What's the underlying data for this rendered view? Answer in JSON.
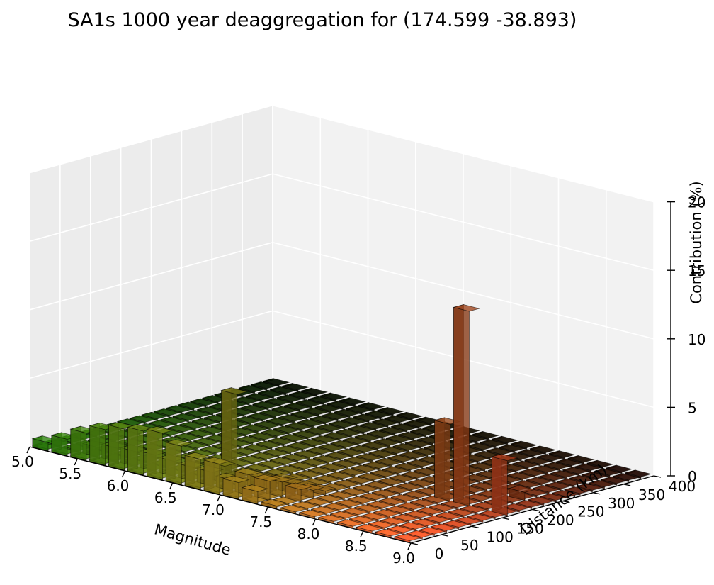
{
  "chart_data": {
    "type": "bar3d",
    "title": "SA1s 1000 year deaggregation for (174.599 -38.893)",
    "xlabel": "Magnitude",
    "ylabel": "Distance (km)",
    "zlabel": "Contribution (%)",
    "x_ticks": [
      "5.0",
      "5.5",
      "6.0",
      "6.5",
      "7.0",
      "7.5",
      "8.0",
      "8.5",
      "9.0"
    ],
    "y_ticks": [
      "0",
      "50",
      "100",
      "150",
      "200",
      "250",
      "300",
      "350",
      "400"
    ],
    "z_ticks": [
      "0",
      "5",
      "10",
      "15",
      "20"
    ],
    "xlim": [
      5.0,
      9.0
    ],
    "ylim": [
      0,
      400
    ],
    "zlim": [
      0,
      20
    ],
    "magnitude_bins": [
      5.0,
      5.2,
      5.4,
      5.6,
      5.8,
      6.0,
      6.2,
      6.4,
      6.6,
      6.8,
      7.0,
      7.2,
      7.4,
      7.6,
      7.8,
      8.0,
      8.2,
      8.4,
      8.6,
      8.8
    ],
    "distance_bins": [
      0,
      20,
      40,
      60,
      80,
      100,
      120,
      140,
      160,
      180,
      200,
      220,
      240,
      260,
      280,
      300,
      320,
      340,
      360,
      380
    ],
    "bars": [
      {
        "magnitude": 5.0,
        "distance": 0,
        "contribution": 0.6
      },
      {
        "magnitude": 5.2,
        "distance": 0,
        "contribution": 1.2
      },
      {
        "magnitude": 5.4,
        "distance": 0,
        "contribution": 2.0
      },
      {
        "magnitude": 5.6,
        "distance": 0,
        "contribution": 2.6
      },
      {
        "magnitude": 5.8,
        "distance": 0,
        "contribution": 3.0
      },
      {
        "magnitude": 6.0,
        "distance": 0,
        "contribution": 3.2
      },
      {
        "magnitude": 6.2,
        "distance": 0,
        "contribution": 3.4
      },
      {
        "magnitude": 6.4,
        "distance": 0,
        "contribution": 2.8
      },
      {
        "magnitude": 6.6,
        "distance": 0,
        "contribution": 2.2
      },
      {
        "magnitude": 6.8,
        "distance": 0,
        "contribution": 2.2
      },
      {
        "magnitude": 7.0,
        "distance": 0,
        "contribution": 1.2
      },
      {
        "magnitude": 7.2,
        "distance": 0,
        "contribution": 0.9
      },
      {
        "magnitude": 7.4,
        "distance": 0,
        "contribution": 0.2
      },
      {
        "magnitude": 5.4,
        "distance": 20,
        "contribution": 0.7
      },
      {
        "magnitude": 5.6,
        "distance": 20,
        "contribution": 1.0
      },
      {
        "magnitude": 5.8,
        "distance": 20,
        "contribution": 1.1
      },
      {
        "magnitude": 6.0,
        "distance": 20,
        "contribution": 1.2
      },
      {
        "magnitude": 6.2,
        "distance": 20,
        "contribution": 1.1
      },
      {
        "magnitude": 6.4,
        "distance": 20,
        "contribution": 1.0
      },
      {
        "magnitude": 6.6,
        "distance": 20,
        "contribution": 1.0
      },
      {
        "magnitude": 6.8,
        "distance": 20,
        "contribution": 0.8
      },
      {
        "magnitude": 7.0,
        "distance": 20,
        "contribution": 1.5
      },
      {
        "magnitude": 7.2,
        "distance": 20,
        "contribution": 1.4
      },
      {
        "magnitude": 6.6,
        "distance": 40,
        "contribution": 1.2
      },
      {
        "magnitude": 7.0,
        "distance": 40,
        "contribution": 1.0
      },
      {
        "magnitude": 7.2,
        "distance": 40,
        "contribution": 1.1
      },
      {
        "magnitude": 7.4,
        "distance": 40,
        "contribution": 0.9
      },
      {
        "magnitude": 6.6,
        "distance": 60,
        "contribution": 6.2
      },
      {
        "magnitude": 7.0,
        "distance": 60,
        "contribution": 0.6
      },
      {
        "magnitude": 7.2,
        "distance": 60,
        "contribution": 0.7
      },
      {
        "magnitude": 7.4,
        "distance": 60,
        "contribution": 0.6
      },
      {
        "magnitude": 7.0,
        "distance": 80,
        "contribution": 0.4
      },
      {
        "magnitude": 7.2,
        "distance": 80,
        "contribution": 0.3
      },
      {
        "magnitude": 7.4,
        "distance": 80,
        "contribution": 0.3
      },
      {
        "magnitude": 8.2,
        "distance": 160,
        "contribution": 5.6
      },
      {
        "magnitude": 8.4,
        "distance": 160,
        "contribution": 14.2
      },
      {
        "magnitude": 8.8,
        "distance": 160,
        "contribution": 4.0
      },
      {
        "magnitude": 8.6,
        "distance": 220,
        "contribution": 0.6
      }
    ]
  }
}
